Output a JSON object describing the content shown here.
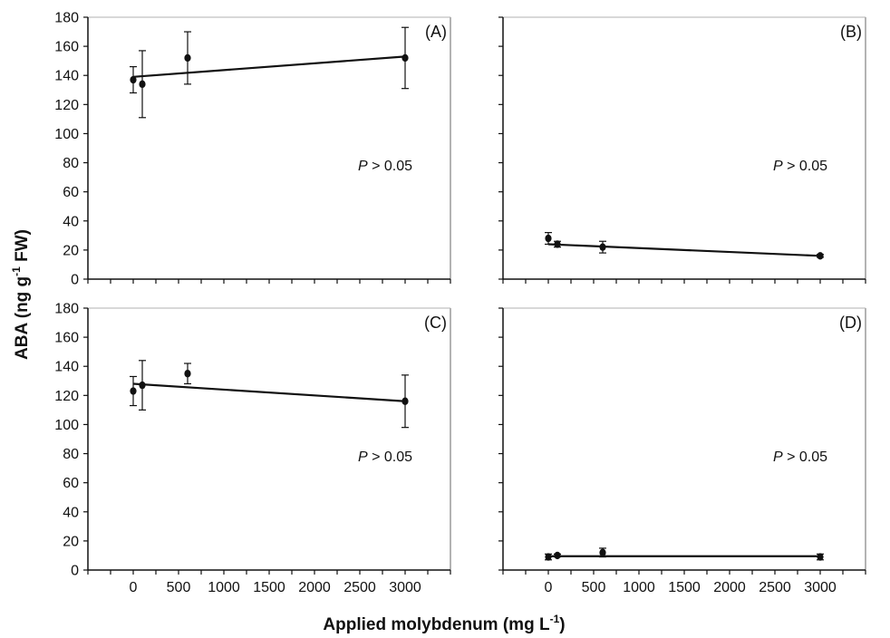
{
  "figure": {
    "ylabel": {
      "main": "ABA (ng g",
      "sup": "-1",
      "tail": " FW)"
    },
    "xlabel": {
      "main": "Applied molybdenum (mg L",
      "sup": "-1",
      "tail": ")"
    }
  },
  "chart_data": [
    {
      "type": "scatter",
      "panel": "(A)",
      "annotation": {
        "italic": "P",
        "rest": " > 0.05"
      },
      "x": [
        0,
        100,
        600,
        3000
      ],
      "y": [
        137,
        134,
        152,
        152
      ],
      "error": [
        9,
        23,
        18,
        21
      ],
      "trendline": {
        "x": [
          0,
          3000
        ],
        "y": [
          139,
          153
        ]
      },
      "xlim": [
        -500,
        3500
      ],
      "ylim": [
        0,
        180
      ],
      "xticks": [],
      "yticks": [
        0,
        20,
        40,
        60,
        80,
        100,
        120,
        140,
        160,
        180
      ]
    },
    {
      "type": "scatter",
      "panel": "(B)",
      "annotation": {
        "italic": "P",
        "rest": " > 0.05"
      },
      "x": [
        0,
        100,
        600,
        3000
      ],
      "y": [
        28,
        24,
        22,
        16
      ],
      "error": [
        4,
        2,
        4,
        1
      ],
      "trendline": {
        "x": [
          0,
          3000
        ],
        "y": [
          24,
          16
        ]
      },
      "xlim": [
        -500,
        3500
      ],
      "ylim": [
        0,
        180
      ],
      "xticks": [],
      "yticks": []
    },
    {
      "type": "scatter",
      "panel": "(C)",
      "annotation": {
        "italic": "P",
        "rest": " > 0.05"
      },
      "x": [
        0,
        100,
        600,
        3000
      ],
      "y": [
        123,
        127,
        135,
        116
      ],
      "error": [
        10,
        17,
        7,
        18
      ],
      "trendline": {
        "x": [
          0,
          3000
        ],
        "y": [
          128,
          116
        ]
      },
      "xlim": [
        -500,
        3500
      ],
      "ylim": [
        0,
        180
      ],
      "xticks": [
        "0",
        "500",
        "1000",
        "1500",
        "2000",
        "2500",
        "3000"
      ],
      "yticks": [
        0,
        20,
        40,
        60,
        80,
        100,
        120,
        140,
        160,
        180
      ]
    },
    {
      "type": "scatter",
      "panel": "(D)",
      "annotation": {
        "italic": "P",
        "rest": " > 0.05"
      },
      "x": [
        0,
        100,
        600,
        3000
      ],
      "y": [
        9,
        10,
        12,
        9
      ],
      "error": [
        2,
        1,
        3,
        2
      ],
      "trendline": {
        "x": [
          0,
          3000
        ],
        "y": [
          9.5,
          9.5
        ]
      },
      "xlim": [
        -500,
        3500
      ],
      "ylim": [
        0,
        180
      ],
      "xticks": [
        "0",
        "500",
        "1000",
        "1500",
        "2000",
        "2500",
        "3000"
      ],
      "yticks": []
    }
  ]
}
